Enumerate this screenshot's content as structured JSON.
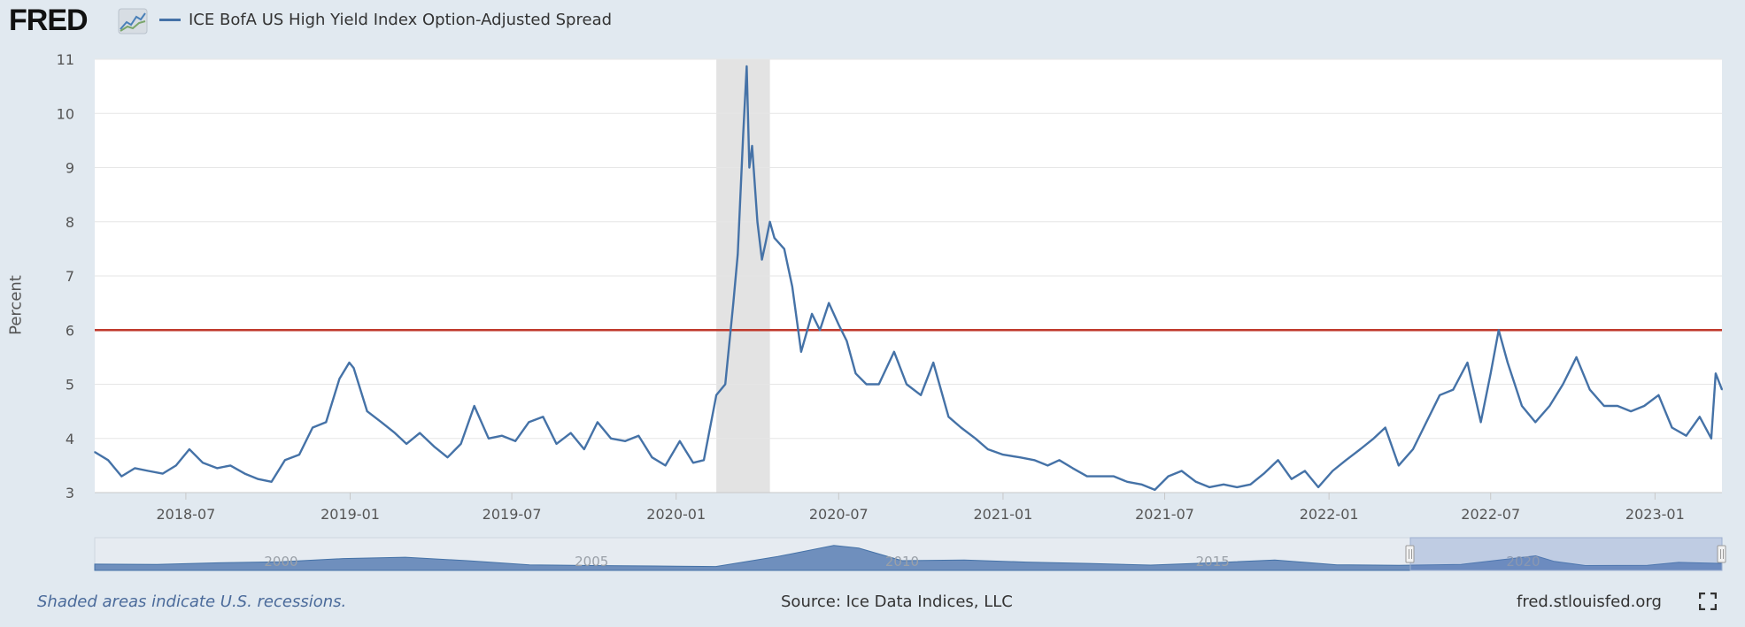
{
  "header": {
    "logo_text": "FRED",
    "series_title": "ICE BofA US High Yield Index Option-Adjusted Spread"
  },
  "footer": {
    "recession_note": "Shaded areas indicate U.S. recessions.",
    "source": "Source: Ice Data Indices, LLC",
    "site": "fred.stlouisfed.org"
  },
  "navigator": {
    "labels": [
      "2000",
      "2005",
      "2010",
      "2015",
      "2020"
    ]
  },
  "colors": {
    "series": "#4572a7",
    "threshold": "#c0392b",
    "recession": "#e3e3e3",
    "background": "#e1e9f0"
  },
  "icons": [
    "fred-chart-icon",
    "fullscreen-icon"
  ],
  "chart_data": {
    "type": "line",
    "title": "",
    "xlabel": "",
    "ylabel": "Percent",
    "ylim": [
      3,
      11
    ],
    "yticks": [
      3,
      4,
      5,
      6,
      7,
      8,
      9,
      10,
      11
    ],
    "xticks": [
      "2018-07",
      "2019-01",
      "2019-07",
      "2020-01",
      "2020-07",
      "2021-01",
      "2021-07",
      "2022-01",
      "2022-07",
      "2023-01"
    ],
    "xrange": [
      "2018-03-21",
      "2023-03-17"
    ],
    "grid": true,
    "recession": {
      "start": "2020-02-15",
      "end": "2020-04-15"
    },
    "threshold": 6.0,
    "series": [
      {
        "name": "ICE BofA US High Yield Index Option-Adjusted Spread",
        "x": [
          "2018-03-21",
          "2018-04-05",
          "2018-04-20",
          "2018-05-05",
          "2018-05-20",
          "2018-06-05",
          "2018-06-20",
          "2018-07-05",
          "2018-07-20",
          "2018-08-05",
          "2018-08-20",
          "2018-09-05",
          "2018-09-20",
          "2018-10-05",
          "2018-10-20",
          "2018-11-05",
          "2018-11-20",
          "2018-12-05",
          "2018-12-20",
          "2018-12-31",
          "2019-01-05",
          "2019-01-20",
          "2019-02-05",
          "2019-02-20",
          "2019-03-05",
          "2019-03-20",
          "2019-04-05",
          "2019-04-20",
          "2019-05-05",
          "2019-05-20",
          "2019-06-05",
          "2019-06-20",
          "2019-07-05",
          "2019-07-20",
          "2019-08-05",
          "2019-08-20",
          "2019-09-05",
          "2019-09-20",
          "2019-10-05",
          "2019-10-20",
          "2019-11-05",
          "2019-11-20",
          "2019-12-05",
          "2019-12-20",
          "2020-01-05",
          "2020-01-20",
          "2020-02-01",
          "2020-02-15",
          "2020-02-25",
          "2020-03-05",
          "2020-03-10",
          "2020-03-16",
          "2020-03-20",
          "2020-03-23",
          "2020-03-26",
          "2020-04-01",
          "2020-04-06",
          "2020-04-10",
          "2020-04-15",
          "2020-04-20",
          "2020-05-01",
          "2020-05-10",
          "2020-05-20",
          "2020-06-01",
          "2020-06-10",
          "2020-06-20",
          "2020-07-01",
          "2020-07-10",
          "2020-07-20",
          "2020-08-01",
          "2020-08-15",
          "2020-09-01",
          "2020-09-15",
          "2020-10-01",
          "2020-10-15",
          "2020-11-01",
          "2020-11-15",
          "2020-12-01",
          "2020-12-15",
          "2021-01-01",
          "2021-01-20",
          "2021-02-05",
          "2021-02-20",
          "2021-03-05",
          "2021-03-20",
          "2021-04-05",
          "2021-04-20",
          "2021-05-05",
          "2021-05-20",
          "2021-06-05",
          "2021-06-20",
          "2021-07-05",
          "2021-07-20",
          "2021-08-05",
          "2021-08-20",
          "2021-09-05",
          "2021-09-20",
          "2021-10-05",
          "2021-10-20",
          "2021-11-05",
          "2021-11-20",
          "2021-12-05",
          "2021-12-20",
          "2022-01-05",
          "2022-01-20",
          "2022-02-05",
          "2022-02-20",
          "2022-03-05",
          "2022-03-20",
          "2022-04-05",
          "2022-04-20",
          "2022-05-05",
          "2022-05-20",
          "2022-06-05",
          "2022-06-20",
          "2022-07-01",
          "2022-07-10",
          "2022-07-20",
          "2022-08-05",
          "2022-08-20",
          "2022-09-05",
          "2022-09-20",
          "2022-10-05",
          "2022-10-20",
          "2022-11-05",
          "2022-11-20",
          "2022-12-05",
          "2022-12-20",
          "2023-01-05",
          "2023-01-20",
          "2023-02-05",
          "2023-02-20",
          "2023-03-05",
          "2023-03-10",
          "2023-03-17"
        ],
        "values": [
          3.75,
          3.6,
          3.3,
          3.45,
          3.4,
          3.35,
          3.5,
          3.8,
          3.55,
          3.45,
          3.5,
          3.35,
          3.25,
          3.2,
          3.6,
          3.7,
          4.2,
          4.3,
          5.1,
          5.4,
          5.3,
          4.5,
          4.3,
          4.1,
          3.9,
          4.1,
          3.85,
          3.65,
          3.9,
          4.6,
          4.0,
          4.05,
          3.95,
          4.3,
          4.4,
          3.9,
          4.1,
          3.8,
          4.3,
          4.0,
          3.95,
          4.05,
          3.65,
          3.5,
          3.95,
          3.55,
          3.6,
          4.8,
          5.0,
          6.5,
          7.4,
          9.6,
          10.87,
          9.0,
          9.4,
          8.0,
          7.3,
          7.6,
          8.0,
          7.7,
          7.5,
          6.8,
          5.6,
          6.3,
          6.0,
          6.5,
          6.1,
          5.8,
          5.2,
          5.0,
          5.0,
          5.6,
          5.0,
          4.8,
          5.4,
          4.4,
          4.2,
          4.0,
          3.8,
          3.7,
          3.65,
          3.6,
          3.5,
          3.6,
          3.45,
          3.3,
          3.3,
          3.3,
          3.2,
          3.15,
          3.05,
          3.3,
          3.4,
          3.2,
          3.1,
          3.15,
          3.1,
          3.15,
          3.35,
          3.6,
          3.25,
          3.4,
          3.1,
          3.4,
          3.6,
          3.8,
          4.0,
          4.2,
          3.5,
          3.8,
          4.3,
          4.8,
          4.9,
          5.4,
          4.3,
          5.2,
          6.0,
          5.4,
          4.6,
          4.3,
          4.6,
          5.0,
          5.5,
          4.9,
          4.6,
          4.6,
          4.5,
          4.6,
          4.8,
          4.2,
          4.05,
          4.4,
          4.0,
          5.2,
          4.9
        ]
      }
    ]
  }
}
